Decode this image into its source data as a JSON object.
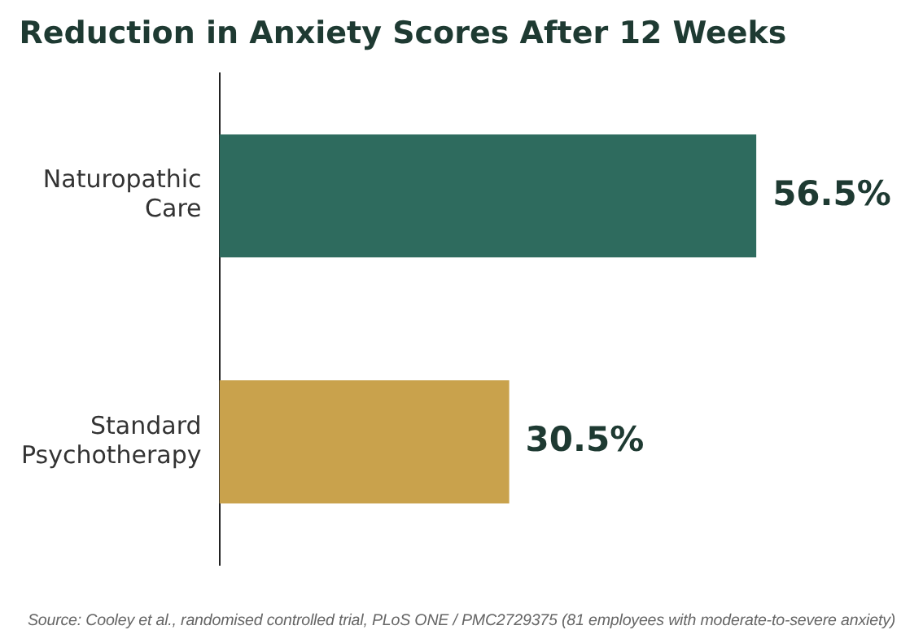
{
  "chart_data": {
    "type": "bar",
    "orientation": "horizontal",
    "title": "Reduction in Anxiety Scores After 12 Weeks",
    "categories": [
      "Naturopathic Care",
      "Standard Psychotherapy"
    ],
    "values": [
      56.5,
      30.5
    ],
    "colors": [
      "#2e6b5e",
      "#c9a24c"
    ],
    "value_labels": [
      "56.5%",
      "30.5%"
    ],
    "tick_labels": "y",
    "legend": false,
    "annotations": [
      "Source: Cooley et al., randomised controlled trial, PLoS ONE / PMC2729375 (81 employees with moderate-to-severe anxiety)"
    ]
  }
}
